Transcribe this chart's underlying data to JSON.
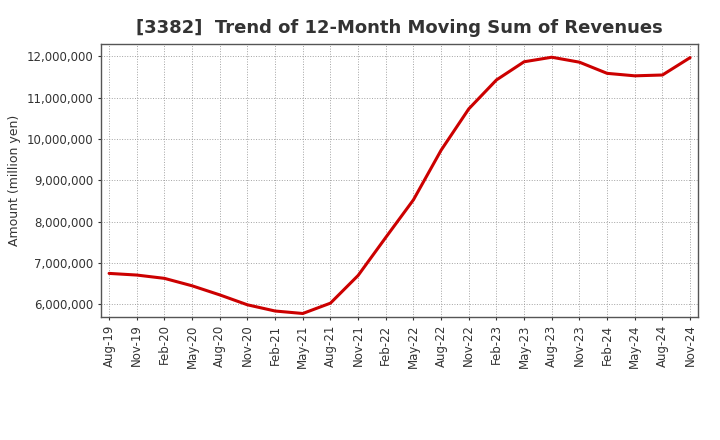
{
  "title": "[3382]  Trend of 12-Month Moving Sum of Revenues",
  "ylabel": "Amount (million yen)",
  "background_color": "#ffffff",
  "line_color": "#cc0000",
  "grid_color": "#999999",
  "tick_labels": [
    "Aug-19",
    "Nov-19",
    "Feb-20",
    "May-20",
    "Aug-20",
    "Nov-20",
    "Feb-21",
    "May-21",
    "Aug-21",
    "Nov-21",
    "Feb-22",
    "May-22",
    "Aug-22",
    "Nov-22",
    "Feb-23",
    "May-23",
    "Aug-23",
    "Nov-23",
    "Feb-24",
    "May-24",
    "Aug-24",
    "Nov-24"
  ],
  "values": [
    6750000,
    6710000,
    6630000,
    6450000,
    6230000,
    5990000,
    5840000,
    5780000,
    6030000,
    6700000,
    7620000,
    8530000,
    9730000,
    10730000,
    11430000,
    11870000,
    11980000,
    11860000,
    11590000,
    11530000,
    11550000,
    11970000
  ],
  "ylim": [
    5700000,
    12300000
  ],
  "yticks": [
    6000000,
    7000000,
    8000000,
    9000000,
    10000000,
    11000000,
    12000000
  ],
  "title_fontsize": 13,
  "axis_label_fontsize": 9,
  "tick_fontsize": 8.5
}
